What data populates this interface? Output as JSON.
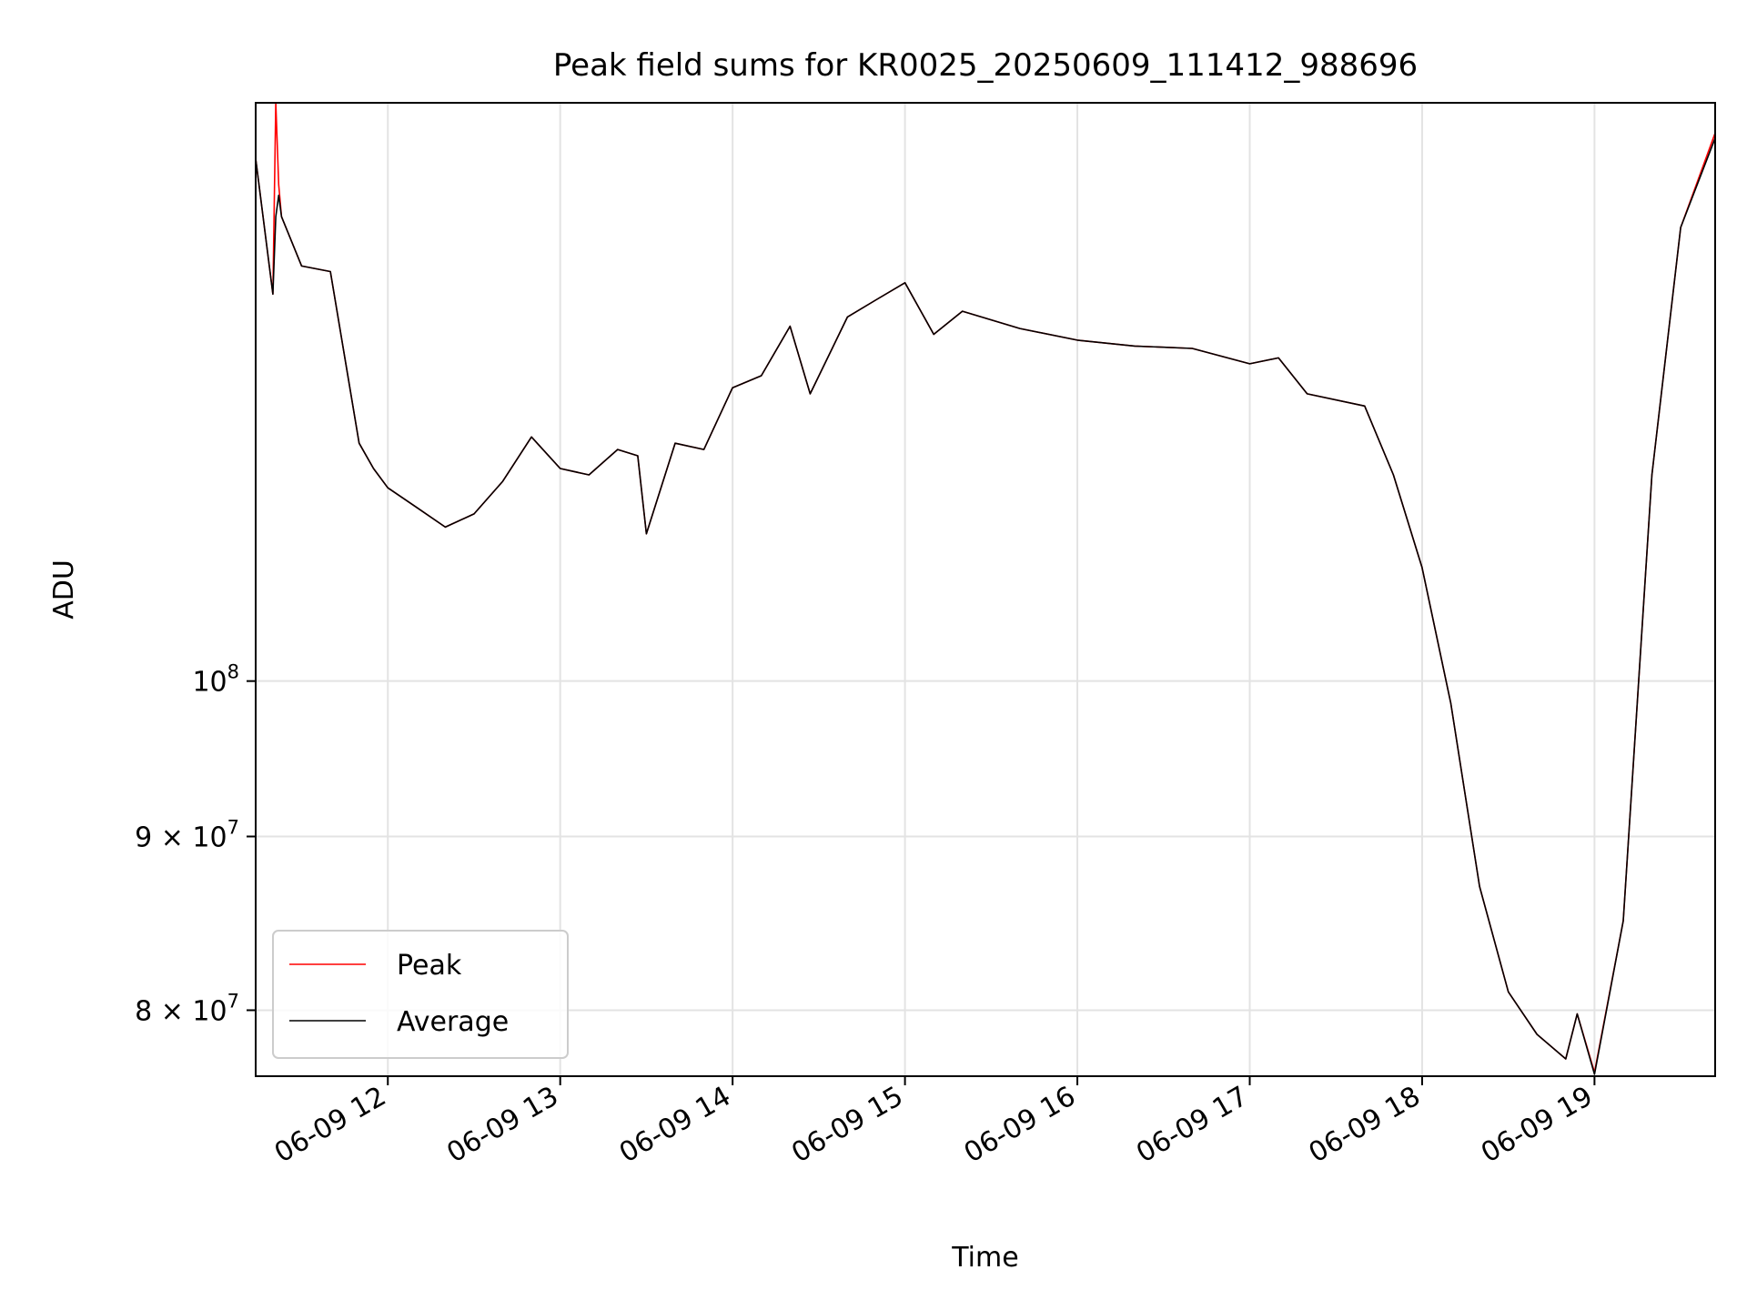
{
  "chart_data": {
    "type": "line",
    "title": "Peak field sums for KR0025_20250609_111412_988696",
    "xlabel": "Time",
    "ylabel": "ADU",
    "y_scale": "log",
    "ylim": [
      76500000,
      148000000
    ],
    "x_range": [
      "06-09 11:14",
      "06-09 19:42"
    ],
    "grid": true,
    "legend_position": "lower-left",
    "x_ticks": [
      "06-09 12",
      "06-09 13",
      "06-09 14",
      "06-09 15",
      "06-09 16",
      "06-09 17",
      "06-09 18",
      "06-09 19"
    ],
    "x_tick_hours": [
      12,
      13,
      14,
      15,
      16,
      17,
      18,
      19
    ],
    "y_ticks": [
      {
        "value": 100000000,
        "mantissa": "",
        "exponent": "8"
      },
      {
        "value": 90000000,
        "mantissa": "9",
        "exponent": "7"
      },
      {
        "value": 80000000,
        "mantissa": "8",
        "exponent": "7"
      }
    ],
    "series": [
      {
        "name": "Peak",
        "color": "#ff0000",
        "x": [
          "06-09 11:14",
          "06-09 11:20",
          "06-09 11:21",
          "06-09 11:22",
          "06-09 11:23",
          "06-09 11:30",
          "06-09 11:40",
          "06-09 11:50",
          "06-09 11:55",
          "06-09 12:00",
          "06-09 12:10",
          "06-09 12:20",
          "06-09 12:30",
          "06-09 12:40",
          "06-09 12:50",
          "06-09 13:00",
          "06-09 13:10",
          "06-09 13:20",
          "06-09 13:27",
          "06-09 13:30",
          "06-09 13:40",
          "06-09 13:50",
          "06-09 14:00",
          "06-09 14:10",
          "06-09 14:20",
          "06-09 14:27",
          "06-09 14:40",
          "06-09 14:50",
          "06-09 15:00",
          "06-09 15:10",
          "06-09 15:20",
          "06-09 15:40",
          "06-09 16:00",
          "06-09 16:20",
          "06-09 16:40",
          "06-09 17:00",
          "06-09 17:10",
          "06-09 17:20",
          "06-09 17:40",
          "06-09 17:50",
          "06-09 18:00",
          "06-09 18:10",
          "06-09 18:20",
          "06-09 18:30",
          "06-09 18:40",
          "06-09 18:50",
          "06-09 18:54",
          "06-09 19:00",
          "06-09 19:10",
          "06-09 19:20",
          "06-09 19:30",
          "06-09 19:42"
        ],
        "values": [
          142500000,
          130000000,
          148000000,
          140000000,
          137000000,
          132500000,
          132000000,
          117500000,
          115500000,
          114000000,
          112500000,
          111000000,
          112000000,
          114500000,
          118000000,
          115500000,
          115000000,
          117000000,
          116500000,
          110500000,
          117500000,
          117000000,
          122000000,
          123000000,
          127200000,
          121500000,
          128000000,
          129500000,
          131000000,
          126500000,
          128500000,
          127000000,
          126000000,
          125500000,
          125300000,
          124000000,
          124500000,
          121500000,
          120500000,
          115000000,
          108000000,
          98500000,
          87000000,
          81000000,
          78700000,
          77400000,
          79800000,
          76700000,
          85000000,
          115000000,
          136000000,
          145000000
        ]
      },
      {
        "name": "Average",
        "color": "#000000",
        "x": [
          "06-09 11:14",
          "06-09 11:20",
          "06-09 11:21",
          "06-09 11:22",
          "06-09 11:23",
          "06-09 11:30",
          "06-09 11:40",
          "06-09 11:50",
          "06-09 11:55",
          "06-09 12:00",
          "06-09 12:10",
          "06-09 12:20",
          "06-09 12:30",
          "06-09 12:40",
          "06-09 12:50",
          "06-09 13:00",
          "06-09 13:10",
          "06-09 13:20",
          "06-09 13:27",
          "06-09 13:30",
          "06-09 13:40",
          "06-09 13:50",
          "06-09 14:00",
          "06-09 14:10",
          "06-09 14:20",
          "06-09 14:27",
          "06-09 14:40",
          "06-09 14:50",
          "06-09 15:00",
          "06-09 15:10",
          "06-09 15:20",
          "06-09 15:40",
          "06-09 16:00",
          "06-09 16:20",
          "06-09 16:40",
          "06-09 17:00",
          "06-09 17:10",
          "06-09 17:20",
          "06-09 17:40",
          "06-09 17:50",
          "06-09 18:00",
          "06-09 18:10",
          "06-09 18:20",
          "06-09 18:30",
          "06-09 18:40",
          "06-09 18:50",
          "06-09 18:54",
          "06-09 19:00",
          "06-09 19:10",
          "06-09 19:20",
          "06-09 19:30",
          "06-09 19:42"
        ],
        "values": [
          142500000,
          130000000,
          137000000,
          139000000,
          137000000,
          132500000,
          132000000,
          117500000,
          115500000,
          114000000,
          112500000,
          111000000,
          112000000,
          114500000,
          118000000,
          115500000,
          115000000,
          117000000,
          116500000,
          110500000,
          117500000,
          117000000,
          122000000,
          123000000,
          127200000,
          121500000,
          128000000,
          129500000,
          131000000,
          126500000,
          128500000,
          127000000,
          126000000,
          125500000,
          125300000,
          124000000,
          124500000,
          121500000,
          120500000,
          115000000,
          108000000,
          98500000,
          87000000,
          81000000,
          78700000,
          77400000,
          79800000,
          76600000,
          85000000,
          115000000,
          136000000,
          144500000
        ]
      }
    ]
  }
}
